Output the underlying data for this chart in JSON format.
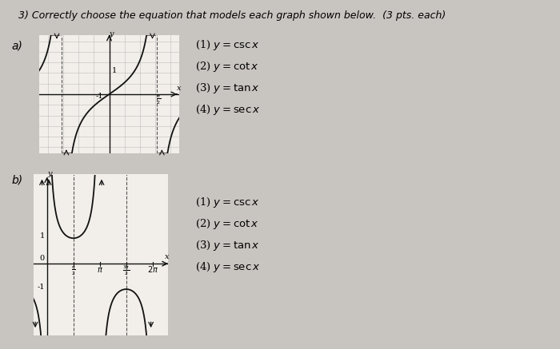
{
  "title": "3) Correctly choose the equation that models each graph shown below.  (3 pts. each)",
  "title_fontsize": 9,
  "bg_color": "#c8c4c0",
  "paper_color": "#f2efea",
  "graph_a_label": "a)",
  "graph_b_label": "b)",
  "choices_a": [
    "(1) $y = \\csc x$",
    "(2) $y = \\cot x$",
    "(3) $y = \\tan x$",
    "(4) $y = \\sec x$"
  ],
  "choices_b": [
    "(1) $y = \\csc x$",
    "(2) $y = \\cot x$",
    "(3) $y = \\tan x$",
    "(4) $y = \\sec x$"
  ],
  "graph_line_color": "#111111",
  "axis_color": "#111111",
  "dashed_color": "#555555",
  "grid_color": "#aaaaaa"
}
